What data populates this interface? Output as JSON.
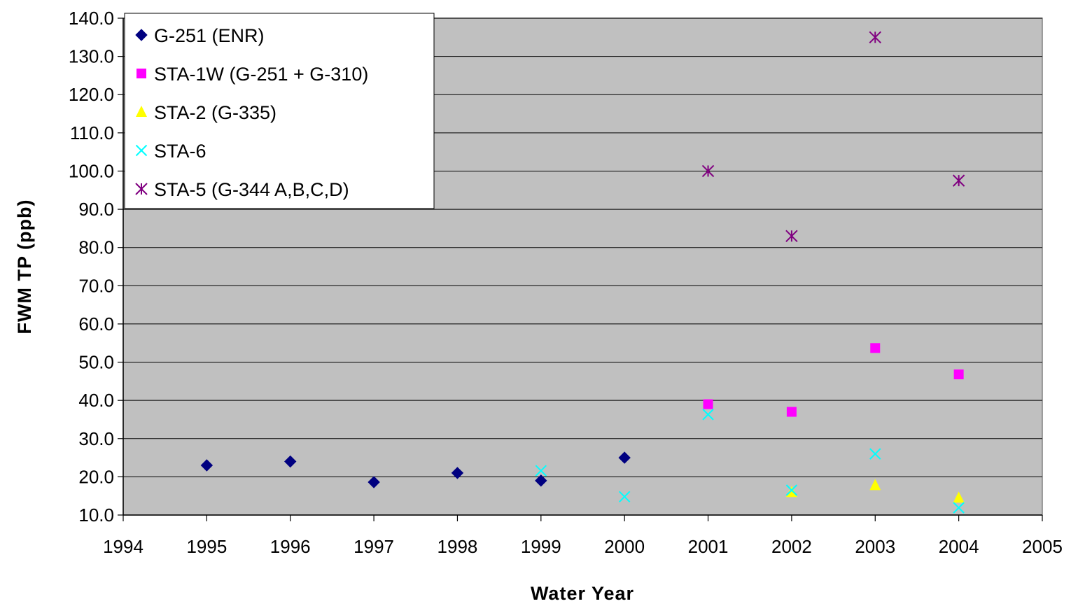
{
  "chart_data": {
    "type": "scatter",
    "title": "",
    "xlabel": "Water Year",
    "ylabel": "FWM TP (ppb)",
    "xlim": [
      1994,
      2005
    ],
    "ylim": [
      10.0,
      140.0
    ],
    "x_ticks": [
      "1994",
      "1995",
      "1996",
      "1997",
      "1998",
      "1999",
      "2000",
      "2001",
      "2002",
      "2003",
      "2004",
      "2005"
    ],
    "y_ticks": [
      "10.0",
      "20.0",
      "30.0",
      "40.0",
      "50.0",
      "60.0",
      "70.0",
      "80.0",
      "90.0",
      "100.0",
      "110.0",
      "120.0",
      "130.0",
      "140.0"
    ],
    "grid": "horizontal",
    "plot_background": "#c0c0c0",
    "legend_position": "top-left",
    "series": [
      {
        "name": "G-251 (ENR)",
        "marker": "diamond",
        "color": "#000080",
        "x": [
          1995,
          1996,
          1997,
          1998,
          1999,
          2000
        ],
        "y": [
          23.0,
          24.0,
          18.6,
          21.0,
          19.0,
          25.0
        ]
      },
      {
        "name": "STA-1W (G-251 + G-310)",
        "marker": "square",
        "color": "#ff00ff",
        "x": [
          2001,
          2002,
          2003,
          2004
        ],
        "y": [
          39.0,
          37.0,
          53.7,
          46.8
        ]
      },
      {
        "name": "STA-2 (G-335)",
        "marker": "triangle",
        "color": "#ffff00",
        "x": [
          2002,
          2003,
          2004
        ],
        "y": [
          16.0,
          17.8,
          14.5
        ]
      },
      {
        "name": "STA-6",
        "marker": "x",
        "color": "#00ffff",
        "x": [
          1999,
          2000,
          2001,
          2002,
          2003,
          2004
        ],
        "y": [
          21.6,
          14.8,
          36.3,
          16.5,
          26.0,
          11.9
        ]
      },
      {
        "name": "STA-5 (G-344 A,B,C,D)",
        "marker": "asterisk",
        "color": "#800080",
        "x": [
          2001,
          2002,
          2003,
          2004
        ],
        "y": [
          100.0,
          83.0,
          135.0,
          97.5
        ]
      }
    ]
  }
}
